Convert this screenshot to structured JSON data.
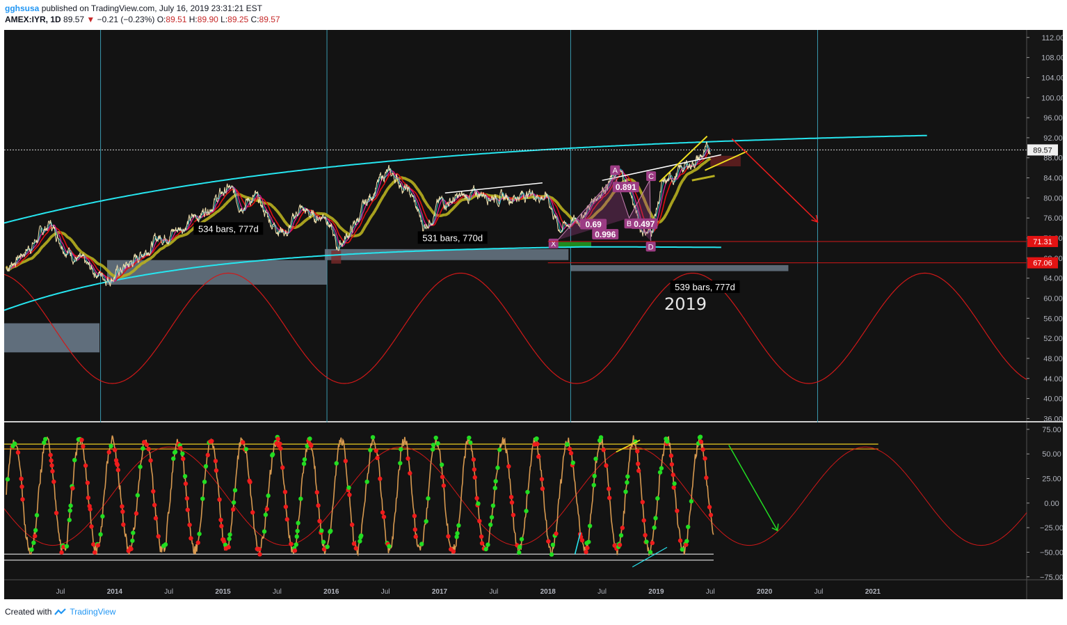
{
  "header": {
    "author": "gghsusa",
    "published": "published on TradingView.com, July 16, 2019 23:31:21 EST",
    "symbol": "AMEX:IYR, 1D",
    "last": "89.57",
    "change": "−0.21 (−0.23%)",
    "o_label": "O:",
    "o": "89.51",
    "h_label": "H:",
    "h": "89.90",
    "l_label": "L:",
    "l": "89.25",
    "c_label": "C:",
    "c": "89.57"
  },
  "footer": {
    "created": "Created with",
    "brand": "TradingView"
  },
  "colors": {
    "background": "#131313",
    "panel_border": "#505050",
    "cyan": "#26e6f0",
    "red": "#d01818",
    "yellow_ma": "#b8b020",
    "magenta": "#d02090",
    "oscillator": "#d89a50",
    "green_dot": "#22dd22",
    "red_dot": "#ee1c1c",
    "pattern": "#9c3c84",
    "price_label": "#f0f0f0"
  },
  "chart_data": [
    {
      "type": "line",
      "title": "AMEX:IYR, 1D",
      "y_axis_ticks": [
        "112.00",
        "108.00",
        "104.00",
        "100.00",
        "96.00",
        "92.00",
        "88.00",
        "84.00",
        "80.00",
        "76.00",
        "72.00",
        "68.00",
        "64.00",
        "60.00",
        "56.00",
        "52.00",
        "48.00",
        "44.00",
        "40.00",
        "36.00"
      ],
      "y_tick_values": [
        112,
        108,
        104,
        100,
        96,
        92,
        88,
        84,
        80,
        76,
        72,
        68,
        64,
        60,
        56,
        52,
        48,
        44,
        40,
        36
      ],
      "ylim": [
        35.5,
        113.5
      ],
      "x_axis_labels": [
        "Jul",
        "2014",
        "Jul",
        "2015",
        "Jul",
        "2016",
        "Jul",
        "2017",
        "Jul",
        "2018",
        "Jul",
        "2019",
        "Jul",
        "2020",
        "Jul",
        "2021"
      ],
      "x_tick_values": [
        2013.5,
        2014.0,
        2014.5,
        2015.0,
        2015.5,
        2016.0,
        2016.5,
        2017.0,
        2017.5,
        2018.0,
        2018.5,
        2019.0,
        2019.5,
        2020.0,
        2020.5,
        2021.0
      ],
      "xlim": [
        2012.98,
        2022.42
      ],
      "series": [
        {
          "values_x": [
            2013.0,
            2013.25,
            2013.4,
            2013.55,
            2013.75,
            2013.95,
            2014.15,
            2014.4,
            2014.6,
            2014.8,
            2015.05,
            2015.15,
            2015.3,
            2015.45,
            2015.6,
            2015.7,
            2015.85,
            2015.95,
            2016.05,
            2016.2,
            2016.35,
            2016.5,
            2016.6,
            2016.75,
            2016.85,
            2017.0,
            2017.2,
            2017.4,
            2017.6,
            2017.85,
            2018.0,
            2018.1,
            2018.3,
            2018.5,
            2018.65,
            2018.75,
            2018.85,
            2018.95,
            2019.05,
            2019.25,
            2019.4,
            2019.5
          ],
          "values_y": [
            66,
            71,
            75,
            70,
            66,
            64,
            67,
            72,
            74,
            77,
            82,
            79,
            80,
            75,
            73,
            78,
            76,
            77,
            70,
            74,
            80,
            85,
            84,
            80,
            74,
            79,
            80,
            81,
            80,
            81,
            80,
            74,
            76,
            82,
            85,
            82,
            74,
            73,
            82,
            86,
            88,
            89.57
          ]
        }
      ],
      "price_labels": [
        "89.57",
        "71.31",
        "67.06"
      ],
      "price_label_values": [
        89.57,
        71.31,
        67.06
      ],
      "annotations": {
        "bars_1": "534 bars, 777d",
        "bars_2": "531 bars, 770d",
        "bars_3": "539 bars, 777d",
        "year": "2019",
        "harmonic_points": [
          "X",
          "A",
          "B",
          "C",
          "D"
        ],
        "harmonic_ratios": [
          "0.891",
          "0.69",
          "0.996",
          "0.497"
        ]
      }
    },
    {
      "type": "line",
      "y_axis_ticks": [
        "75.00",
        "50.00",
        "25.00",
        "0.00",
        "−25.00",
        "−50.00",
        "−75.00"
      ],
      "y_tick_values": [
        75,
        50,
        25,
        0,
        -25,
        -50,
        -75
      ],
      "ylim": [
        -78,
        82
      ],
      "x_axis_labels": [
        "Jul",
        "2014",
        "Jul",
        "2015",
        "Jul",
        "2016",
        "Jul",
        "2017",
        "Jul",
        "2018",
        "Jul",
        "2019",
        "Jul",
        "2020",
        "Jul",
        "2021"
      ],
      "horizontal_levels": [
        60,
        55,
        -52,
        -58
      ]
    }
  ]
}
